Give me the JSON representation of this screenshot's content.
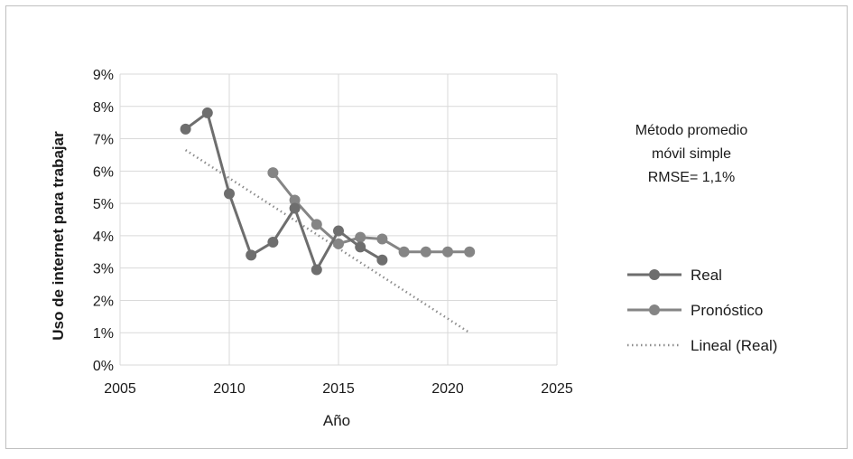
{
  "chart_data": {
    "type": "line",
    "title": "",
    "xlabel": "Año",
    "ylabel": "Uso de internet para trabajar",
    "xlim": [
      2005,
      2025
    ],
    "ylim": [
      0,
      9
    ],
    "x_ticks": [
      2005,
      2010,
      2015,
      2020,
      2025
    ],
    "y_ticks": [
      0,
      1,
      2,
      3,
      4,
      5,
      6,
      7,
      8,
      9
    ],
    "y_tick_labels": [
      "0%",
      "1%",
      "2%",
      "3%",
      "4%",
      "5%",
      "6%",
      "7%",
      "8%",
      "9%"
    ],
    "grid": true,
    "legend_position": "right",
    "annotation": [
      "Método promedio",
      "móvil simple",
      "RMSE= 1,1%"
    ],
    "series": [
      {
        "name": "Real",
        "color": "#6e6e6e",
        "style": "line-marker",
        "x": [
          2008,
          2009,
          2010,
          2011,
          2012,
          2013,
          2014,
          2015,
          2016,
          2017
        ],
        "y": [
          7.3,
          7.8,
          5.3,
          3.4,
          3.8,
          4.85,
          2.95,
          4.15,
          3.65,
          3.25
        ]
      },
      {
        "name": "Pronóstico",
        "color": "#858585",
        "style": "line-marker",
        "x": [
          2012,
          2013,
          2014,
          2015,
          2016,
          2017,
          2018,
          2019,
          2020,
          2021
        ],
        "y": [
          5.95,
          5.1,
          4.35,
          3.75,
          3.95,
          3.9,
          3.5,
          3.5,
          3.5,
          3.5
        ]
      },
      {
        "name": "Lineal (Real)",
        "color": "#8c8c8c",
        "style": "dotted",
        "x": [
          2008,
          2021
        ],
        "y": [
          6.65,
          1.0
        ]
      }
    ]
  }
}
